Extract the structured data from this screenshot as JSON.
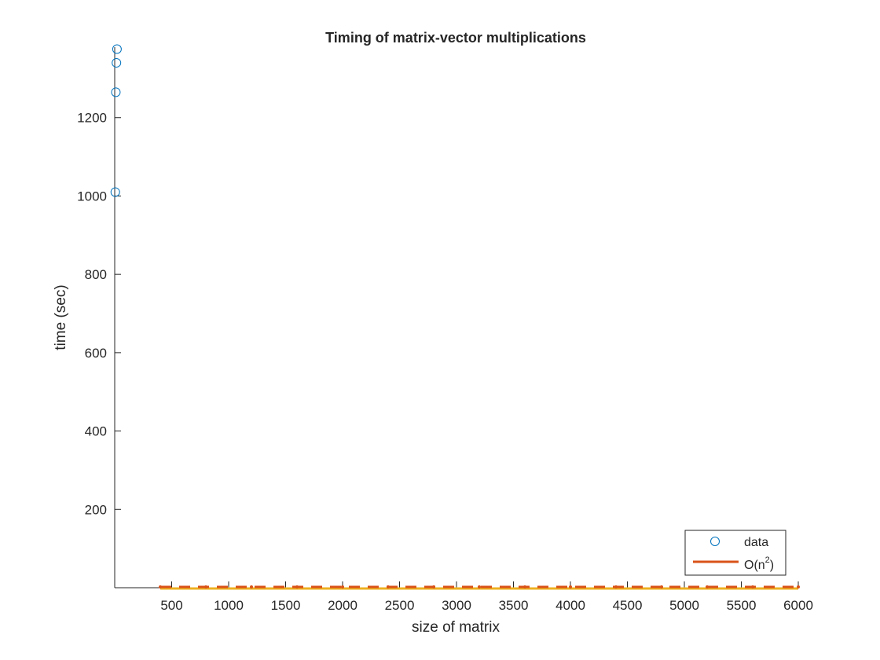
{
  "chart_data": {
    "type": "scatter",
    "title": "Timing of matrix-vector multiplications",
    "xlabel": "size of matrix",
    "ylabel": "time (sec)",
    "xlim": [
      0,
      6000
    ],
    "ylim": [
      0,
      1380
    ],
    "xticks": [
      500,
      1000,
      1500,
      2000,
      2500,
      3000,
      3500,
      4000,
      4500,
      5000,
      5500,
      6000
    ],
    "yticks": [
      200,
      400,
      600,
      800,
      1000,
      1200
    ],
    "grid": false,
    "legend_position": "bottom-right",
    "colors": {
      "data": "#0072BD",
      "fit": "#D95319",
      "extra": "#EDB120",
      "axis": "#262626"
    },
    "series": [
      {
        "name": "data",
        "kind": "markers",
        "x": [
          5,
          10,
          15,
          20
        ],
        "y": [
          1010,
          1265,
          1340,
          1375
        ]
      },
      {
        "name": "O(n²)",
        "legend_base": "O(n",
        "legend_sup": "2",
        "legend_tail": ")",
        "kind": "line",
        "x": [
          400,
          800,
          1200,
          1600,
          2000,
          2400,
          2800,
          3200,
          3600,
          4000,
          4400,
          4800,
          5200,
          5600,
          6000
        ],
        "y": [
          0,
          0,
          0,
          0,
          0,
          0,
          0,
          0,
          0,
          0,
          0,
          0,
          0,
          0,
          0
        ]
      },
      {
        "kind": "line",
        "x": [
          400,
          800,
          1200,
          1600,
          2000,
          2400,
          2800,
          3200,
          3600,
          4000,
          4400,
          4800,
          5200,
          5600,
          6000
        ],
        "y": [
          0,
          0,
          0,
          0,
          0,
          0,
          0,
          0,
          0,
          0,
          0,
          0,
          0,
          0,
          0
        ]
      }
    ]
  }
}
